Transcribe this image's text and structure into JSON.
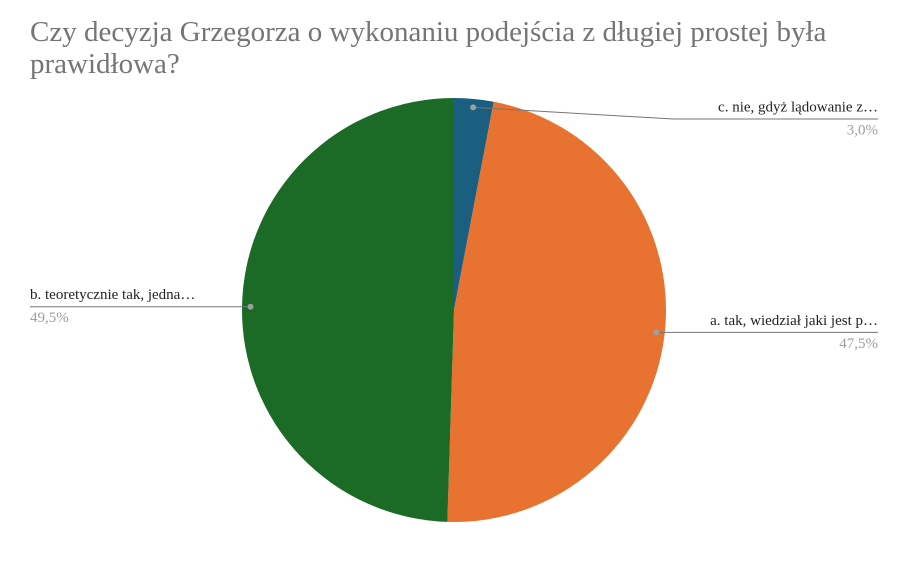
{
  "chart_data": {
    "type": "pie",
    "title": "Czy decyzja Grzegorza o wykonaniu podejścia z długiej prostej była prawidłowa?",
    "categories": [
      "c. nie, gdyż lądowanie z…",
      "a. tak, wiedział jaki jest p…",
      "b. teoretycznie tak, jedna…"
    ],
    "values": [
      3.0,
      47.5,
      49.5
    ],
    "value_labels": [
      "3,0%",
      "47,5%",
      "49,5%"
    ],
    "colors": [
      "#1a5e80",
      "#e87331",
      "#1b6b27"
    ]
  }
}
